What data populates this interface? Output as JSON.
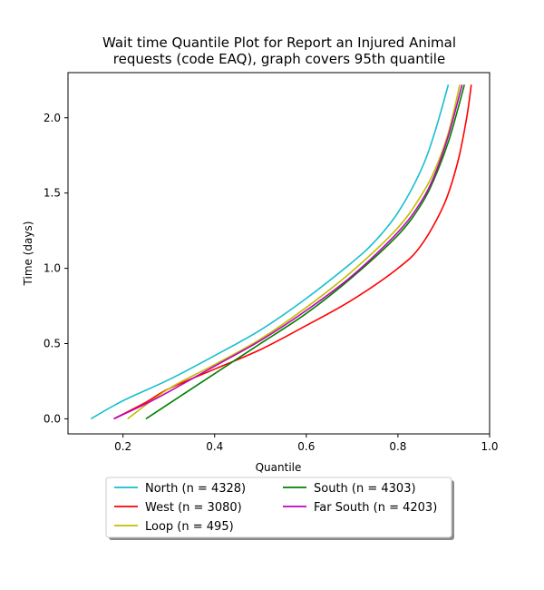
{
  "chart_data": {
    "type": "line",
    "title_line1": "Wait time Quantile Plot for Report an Injured Animal",
    "title_line2": "requests (code EAQ), graph covers 95th quantile",
    "xlabel": "Quantile",
    "ylabel": "Time (days)",
    "xlim": [
      0.08,
      1.0
    ],
    "ylim": [
      -0.1,
      2.3
    ],
    "xticks": [
      0.2,
      0.4,
      0.6,
      0.8,
      1.0
    ],
    "xtick_labels": [
      "0.2",
      "0.4",
      "0.6",
      "0.8",
      "1.0"
    ],
    "yticks": [
      0.0,
      0.5,
      1.0,
      1.5,
      2.0
    ],
    "ytick_labels": [
      "0.0",
      "0.5",
      "1.0",
      "1.5",
      "2.0"
    ],
    "grid": false,
    "legend_placement": "below plot, two columns",
    "series": [
      {
        "name": "North (n = 4328)",
        "color": "#17becf",
        "x": [
          0.13,
          0.2,
          0.3,
          0.4,
          0.5,
          0.6,
          0.7,
          0.75,
          0.8,
          0.85,
          0.88,
          0.91
        ],
        "y": [
          0.0,
          0.12,
          0.26,
          0.42,
          0.59,
          0.8,
          1.04,
          1.18,
          1.37,
          1.65,
          1.9,
          2.22
        ]
      },
      {
        "name": "West (n = 3080)",
        "color": "#ff0000",
        "x": [
          0.18,
          0.25,
          0.3,
          0.4,
          0.5,
          0.6,
          0.7,
          0.8,
          0.85,
          0.9,
          0.93,
          0.95,
          0.96
        ],
        "y": [
          0.0,
          0.11,
          0.2,
          0.33,
          0.46,
          0.62,
          0.79,
          1.0,
          1.15,
          1.42,
          1.7,
          2.0,
          2.22
        ]
      },
      {
        "name": "Loop (n = 495)",
        "color": "#bfbf00",
        "x": [
          0.21,
          0.3,
          0.4,
          0.5,
          0.6,
          0.7,
          0.8,
          0.85,
          0.88,
          0.91,
          0.935
        ],
        "y": [
          0.0,
          0.2,
          0.36,
          0.53,
          0.74,
          0.98,
          1.27,
          1.48,
          1.65,
          1.9,
          2.22
        ]
      },
      {
        "name": "South (n = 4303)",
        "color": "#008000",
        "x": [
          0.25,
          0.3,
          0.4,
          0.5,
          0.6,
          0.7,
          0.8,
          0.85,
          0.88,
          0.91,
          0.93,
          0.945
        ],
        "y": [
          0.0,
          0.1,
          0.3,
          0.5,
          0.7,
          0.94,
          1.22,
          1.42,
          1.6,
          1.84,
          2.05,
          2.22
        ]
      },
      {
        "name": "Far South (n = 4203)",
        "color": "#bf00bf",
        "x": [
          0.18,
          0.25,
          0.3,
          0.4,
          0.5,
          0.6,
          0.7,
          0.8,
          0.85,
          0.88,
          0.91,
          0.94
        ],
        "y": [
          0.0,
          0.1,
          0.18,
          0.35,
          0.52,
          0.72,
          0.95,
          1.24,
          1.44,
          1.62,
          1.88,
          2.22
        ]
      }
    ]
  }
}
